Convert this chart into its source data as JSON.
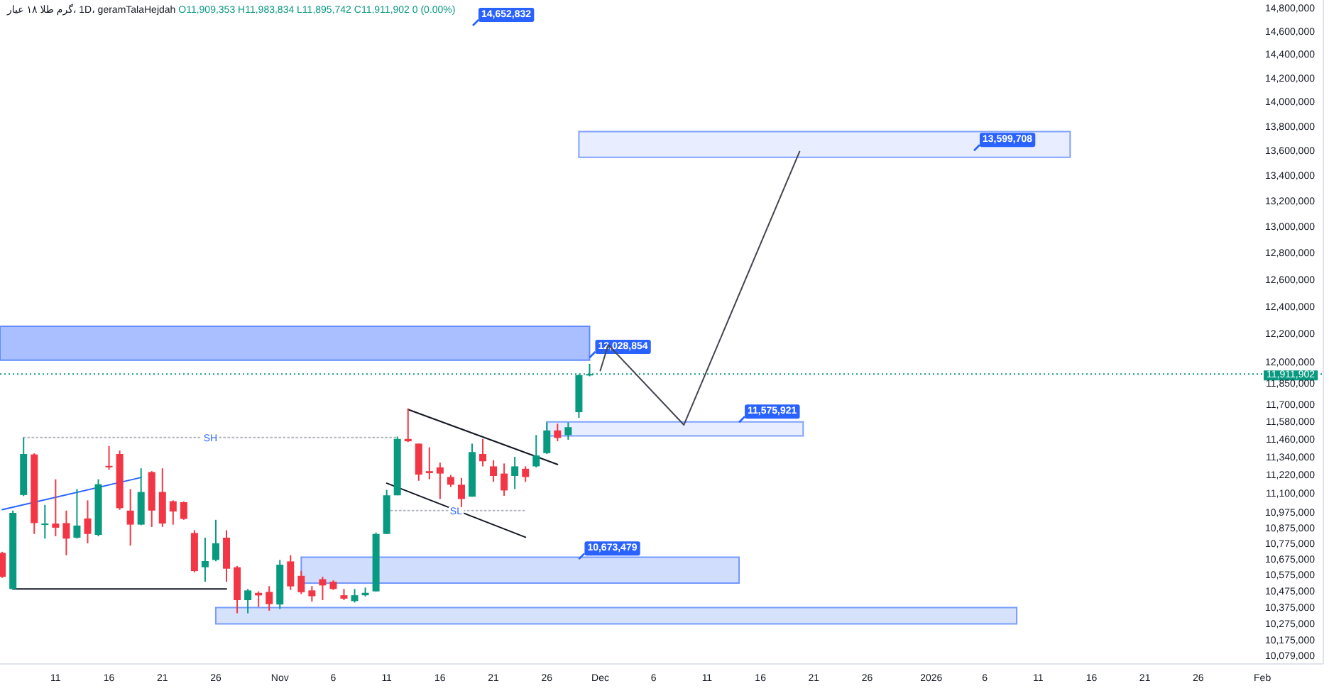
{
  "chart_data": {
    "type": "candlestick",
    "title": "گرم طلا ۱۸ عیار",
    "subtitle": "، 1D، geramTalaHejdah",
    "log": true,
    "xlim": [
      "2025-10-05T19:00",
      "2026-02-06T17:00"
    ],
    "ylim": [
      10030000,
      14870000
    ],
    "xticks": [
      {
        "value": "2025-10-11",
        "label": "11"
      },
      {
        "value": "2025-10-16",
        "label": "16"
      },
      {
        "value": "2025-10-21",
        "label": "21"
      },
      {
        "value": "2025-10-26",
        "label": "26"
      },
      {
        "value": "2025-11-01",
        "label": "Nov"
      },
      {
        "value": "2025-11-06",
        "label": "6"
      },
      {
        "value": "2025-11-11",
        "label": "11"
      },
      {
        "value": "2025-11-16",
        "label": "16"
      },
      {
        "value": "2025-11-21",
        "label": "21"
      },
      {
        "value": "2025-11-26",
        "label": "26"
      },
      {
        "value": "2025-12-01",
        "label": "Dec"
      },
      {
        "value": "2025-12-06",
        "label": "6"
      },
      {
        "value": "2025-12-11",
        "label": "11"
      },
      {
        "value": "2025-12-16",
        "label": "16"
      },
      {
        "value": "2025-12-21",
        "label": "21"
      },
      {
        "value": "2025-12-26",
        "label": "26"
      },
      {
        "value": "2026-01-01",
        "label": "2026"
      },
      {
        "value": "2026-01-06",
        "label": "6"
      },
      {
        "value": "2026-01-11",
        "label": "11"
      },
      {
        "value": "2026-01-16",
        "label": "16"
      },
      {
        "value": "2026-01-21",
        "label": "21"
      },
      {
        "value": "2026-01-26",
        "label": "26"
      },
      {
        "value": "2026-02-01",
        "label": "Feb"
      }
    ],
    "yticks": [
      {
        "value": 10079000,
        "label": "10,079,000"
      },
      {
        "value": 10175000,
        "label": "10,175,000"
      },
      {
        "value": 10275000,
        "label": "10,275,000"
      },
      {
        "value": 10375000,
        "label": "10,375,000"
      },
      {
        "value": 10475000,
        "label": "10,475,000"
      },
      {
        "value": 10575000,
        "label": "10,575,000"
      },
      {
        "value": 10675000,
        "label": "10,675,000"
      },
      {
        "value": 10775000,
        "label": "10,775,000"
      },
      {
        "value": 10875000,
        "label": "10,875,000"
      },
      {
        "value": 10975000,
        "label": "10,975,000"
      },
      {
        "value": 11100000,
        "label": "11,100,000"
      },
      {
        "value": 11220000,
        "label": "11,220,000"
      },
      {
        "value": 11340000,
        "label": "11,340,000"
      },
      {
        "value": 11460000,
        "label": "11,460,000"
      },
      {
        "value": 11580000,
        "label": "11,580,000"
      },
      {
        "value": 11700000,
        "label": "11,700,000"
      },
      {
        "value": 11850000,
        "label": "11,850,000"
      },
      {
        "value": 12000000,
        "label": "12,000,000"
      },
      {
        "value": 12200000,
        "label": "12,200,000"
      },
      {
        "value": 12400000,
        "label": "12,400,000"
      },
      {
        "value": 12600000,
        "label": "12,600,000"
      },
      {
        "value": 12800000,
        "label": "12,800,000"
      },
      {
        "value": 13000000,
        "label": "13,000,000"
      },
      {
        "value": 13200000,
        "label": "13,200,000"
      },
      {
        "value": 13400000,
        "label": "13,400,000"
      },
      {
        "value": 13600000,
        "label": "13,600,000"
      },
      {
        "value": 13800000,
        "label": "13,800,000"
      },
      {
        "value": 14000000,
        "label": "14,000,000"
      },
      {
        "value": 14200000,
        "label": "14,200,000"
      },
      {
        "value": 14400000,
        "label": "14,400,000"
      },
      {
        "value": 14600000,
        "label": "14,600,000"
      },
      {
        "value": 14800000,
        "label": "14,800,000"
      }
    ],
    "x": [
      "2025-10-06",
      "2025-10-07",
      "2025-10-08",
      "2025-10-09",
      "2025-10-10",
      "2025-10-11",
      "2025-10-12",
      "2025-10-13",
      "2025-10-14",
      "2025-10-15",
      "2025-10-16",
      "2025-10-17",
      "2025-10-18",
      "2025-10-19",
      "2025-10-20",
      "2025-10-21",
      "2025-10-22",
      "2025-10-23",
      "2025-10-24",
      "2025-10-25",
      "2025-10-26",
      "2025-10-27",
      "2025-10-28",
      "2025-10-29",
      "2025-10-30",
      "2025-10-31",
      "2025-11-01",
      "2025-11-02",
      "2025-11-03",
      "2025-11-04",
      "2025-11-05",
      "2025-11-06",
      "2025-11-07",
      "2025-11-08",
      "2025-11-09",
      "2025-11-10",
      "2025-11-11",
      "2025-11-12",
      "2025-11-13",
      "2025-11-14",
      "2025-11-15",
      "2025-11-16",
      "2025-11-17",
      "2025-11-18",
      "2025-11-19",
      "2025-11-20",
      "2025-11-21",
      "2025-11-22",
      "2025-11-23",
      "2025-11-24",
      "2025-11-25",
      "2025-11-26",
      "2025-11-27",
      "2025-11-28",
      "2025-11-29",
      "2025-11-30"
    ],
    "ohlc": [
      [
        10713000,
        10720000,
        10555000,
        10562000
      ],
      [
        10486000,
        10985000,
        10480000,
        10970000
      ],
      [
        11087000,
        11472000,
        11080000,
        11360000
      ],
      [
        11357000,
        11365000,
        10834000,
        10904000
      ],
      [
        10895000,
        11022000,
        10804000,
        10901000
      ],
      [
        10901000,
        11191000,
        10819000,
        10874000
      ],
      [
        10904000,
        10985000,
        10698000,
        10804000
      ],
      [
        10810000,
        11126000,
        10804000,
        10888000
      ],
      [
        10934000,
        11052000,
        10774000,
        10834000
      ],
      [
        10828000,
        11191000,
        10819000,
        11158000
      ],
      [
        11280000,
        11414000,
        11254000,
        11270000
      ],
      [
        11360000,
        11383000,
        10990000,
        11001000
      ],
      [
        10985000,
        11126000,
        10759000,
        10894000
      ],
      [
        10894000,
        11264000,
        10890000,
        11107000
      ],
      [
        11239000,
        11245000,
        10879000,
        10985000
      ],
      [
        11107000,
        11264000,
        10879000,
        10901000
      ],
      [
        11046000,
        11052000,
        10894000,
        10979000
      ],
      [
        11040000,
        11045000,
        10925000,
        10931000
      ],
      [
        10840000,
        10858000,
        10590000,
        10598000
      ],
      [
        10622000,
        10810000,
        10531000,
        10661000
      ],
      [
        10668000,
        10925000,
        10660000,
        10774000
      ],
      [
        10810000,
        10858000,
        10531000,
        10613000
      ],
      [
        10622000,
        10630000,
        10336000,
        10417000
      ],
      [
        10417000,
        10486000,
        10336000,
        10477000
      ],
      [
        10462000,
        10471000,
        10375000,
        10446000
      ],
      [
        10468000,
        10504000,
        10352000,
        10392000
      ],
      [
        10390000,
        10668000,
        10362000,
        10638000
      ],
      [
        10659000,
        10698000,
        10480000,
        10502000
      ],
      [
        10568000,
        10600000,
        10455000,
        10466000
      ],
      [
        10477000,
        10504000,
        10408000,
        10441000
      ],
      [
        10547000,
        10562000,
        10417000,
        10508000
      ],
      [
        10531000,
        10540000,
        10480000,
        10486000
      ],
      [
        10447000,
        10486000,
        10417000,
        10426000
      ],
      [
        10411000,
        10486000,
        10402000,
        10447000
      ],
      [
        10447000,
        10495000,
        10440000,
        10462000
      ],
      [
        10471000,
        10843000,
        10471000,
        10834000
      ],
      [
        10834000,
        11121000,
        10834000,
        11085000
      ],
      [
        11085000,
        11478000,
        11085000,
        11462000
      ],
      [
        11462000,
        11671000,
        11440000,
        11446000
      ],
      [
        11430000,
        11430000,
        11181000,
        11222000
      ],
      [
        11245000,
        11405000,
        11191000,
        11232000
      ],
      [
        11270000,
        11302000,
        11061000,
        11229000
      ],
      [
        11206000,
        11220000,
        11140000,
        11155000
      ],
      [
        11155000,
        11200000,
        11001000,
        11061000
      ],
      [
        11076000,
        11430000,
        11076000,
        11373000
      ],
      [
        11360000,
        11462000,
        11277000,
        11311000
      ],
      [
        11277000,
        11318000,
        11174000,
        11213000
      ],
      [
        11229000,
        11296000,
        11082000,
        11117000
      ],
      [
        11213000,
        11341000,
        11126000,
        11277000
      ],
      [
        11261000,
        11277000,
        11174000,
        11206000
      ],
      [
        11277000,
        11488000,
        11270000,
        11350000
      ],
      [
        11366000,
        11575000,
        11360000,
        11520000
      ],
      [
        11520000,
        11566000,
        11446000,
        11469000
      ],
      [
        11488000,
        11575000,
        11456000,
        11542000
      ],
      [
        11645000,
        11910000,
        11606000,
        11904000
      ],
      [
        11909353,
        11983834,
        11895742,
        11911902
      ]
    ],
    "colors": [
      "#f23645",
      "#089981",
      "#089981",
      "#f23645",
      "#089981",
      "#f23645",
      "#f23645",
      "#089981",
      "#f23645",
      "#089981",
      "#f23645",
      "#f23645",
      "#f23645",
      "#089981",
      "#f23645",
      "#f23645",
      "#f23645",
      "#f23645",
      "#f23645",
      "#089981",
      "#089981",
      "#f23645",
      "#f23645",
      "#089981",
      "#f23645",
      "#f23645",
      "#089981",
      "#f23645",
      "#f23645",
      "#f23645",
      "#f23645",
      "#f23645",
      "#f23645",
      "#089981",
      "#089981",
      "#089981",
      "#089981",
      "#089981",
      "#f23645",
      "#f23645",
      "#f23645",
      "#f23645",
      "#f23645",
      "#f23645",
      "#089981",
      "#f23645",
      "#f23645",
      "#f23645",
      "#089981",
      "#f23645",
      "#089981",
      "#089981",
      "#f23645",
      "#089981",
      "#089981",
      "#089981"
    ],
    "series": [
      {
        "type": "line",
        "x": [
          "2025-10-06",
          "2025-10-19"
        ],
        "values": [
          10991000,
          11203000
        ],
        "color": "#2962ff"
      },
      {
        "type": "line",
        "name": "SH",
        "x": [
          "2025-10-08",
          "2025-11-12"
        ],
        "values": [
          11472000,
          11472000
        ],
        "color": "#b2b5be",
        "line_style": "dotted"
      },
      {
        "type": "line",
        "x": [
          "2025-10-07",
          "2025-10-27"
        ],
        "values": [
          10486000,
          10486000
        ],
        "color": "#131722"
      },
      {
        "type": "line",
        "x": [
          "2025-11-13",
          "2025-11-27"
        ],
        "values": [
          11664000,
          11290000
        ],
        "color": "#131722"
      },
      {
        "type": "line",
        "x": [
          "2025-11-11",
          "2025-11-24"
        ],
        "values": [
          11165000,
          10813000
        ],
        "color": "#131722"
      },
      {
        "type": "line",
        "name": "SL",
        "x": [
          "2025-11-11",
          "2025-11-24"
        ],
        "values": [
          10985000,
          10985000
        ],
        "color": "#b2b5be",
        "line_style": "dotted"
      },
      {
        "type": "line",
        "x": [
          "2025-12-01",
          "2025-12-01T18:00",
          "2025-12-08T20:00",
          "2025-12-19T16:00"
        ],
        "values": [
          11936000,
          12120000,
          11558000,
          13592000
        ],
        "color": "#434651"
      },
      {
        "type": "area",
        "x": [
          "2025-11-29",
          "2026-01-14"
        ],
        "values": [
          null,
          null
        ],
        "lower": [
          13546000,
          13546000
        ],
        "upper": [
          13754000,
          13754000
        ],
        "color": "#e8eeff"
      },
      {
        "type": "area",
        "x": [
          "2025-10-05T19:00",
          "2025-11-30"
        ],
        "values": [
          null,
          null
        ],
        "lower": [
          12010000,
          12010000
        ],
        "upper": [
          12254000,
          12254000
        ],
        "color": "#a9bfff"
      },
      {
        "type": "area",
        "x": [
          "2025-11-26",
          "2025-12-20"
        ],
        "values": [
          null,
          null
        ],
        "lower": [
          11482000,
          11482000
        ],
        "upper": [
          11578000,
          11578000
        ],
        "color": "#e8eeff"
      },
      {
        "type": "area",
        "x": [
          "2025-11-03",
          "2025-12-14"
        ],
        "values": [
          null,
          null
        ],
        "lower": [
          10523000,
          10523000
        ],
        "upper": [
          10686000,
          10686000
        ],
        "color": "#d0ddfc"
      },
      {
        "type": "area",
        "x": [
          "2025-10-26",
          "2026-01-09"
        ],
        "values": [
          null,
          null
        ],
        "lower": [
          10271000,
          10271000
        ],
        "upper": [
          10371000,
          10371000
        ],
        "color": "#d6e2fb"
      }
    ],
    "ref_lines": [
      {
        "axis": "y",
        "value": 11911902,
        "label": "11,911,902",
        "color": "#089981",
        "line_style": "dotted"
      }
    ],
    "annotations": [
      "O11,909,353 H11,983,834 L11,895,742 C11,911,902 0 (0.00%)",
      "14,652,832",
      {
        "text": "13,599,708",
        "x": "2026-01-05",
        "y": 13599708
      },
      {
        "text": "12,028,854",
        "x": "2025-11-30",
        "y": 12028854
      },
      {
        "text": "11,575,921",
        "x": "2025-12-14",
        "y": 11575921
      },
      {
        "text": "10,673,479",
        "x": "2025-11-29",
        "y": 10673479
      }
    ]
  }
}
